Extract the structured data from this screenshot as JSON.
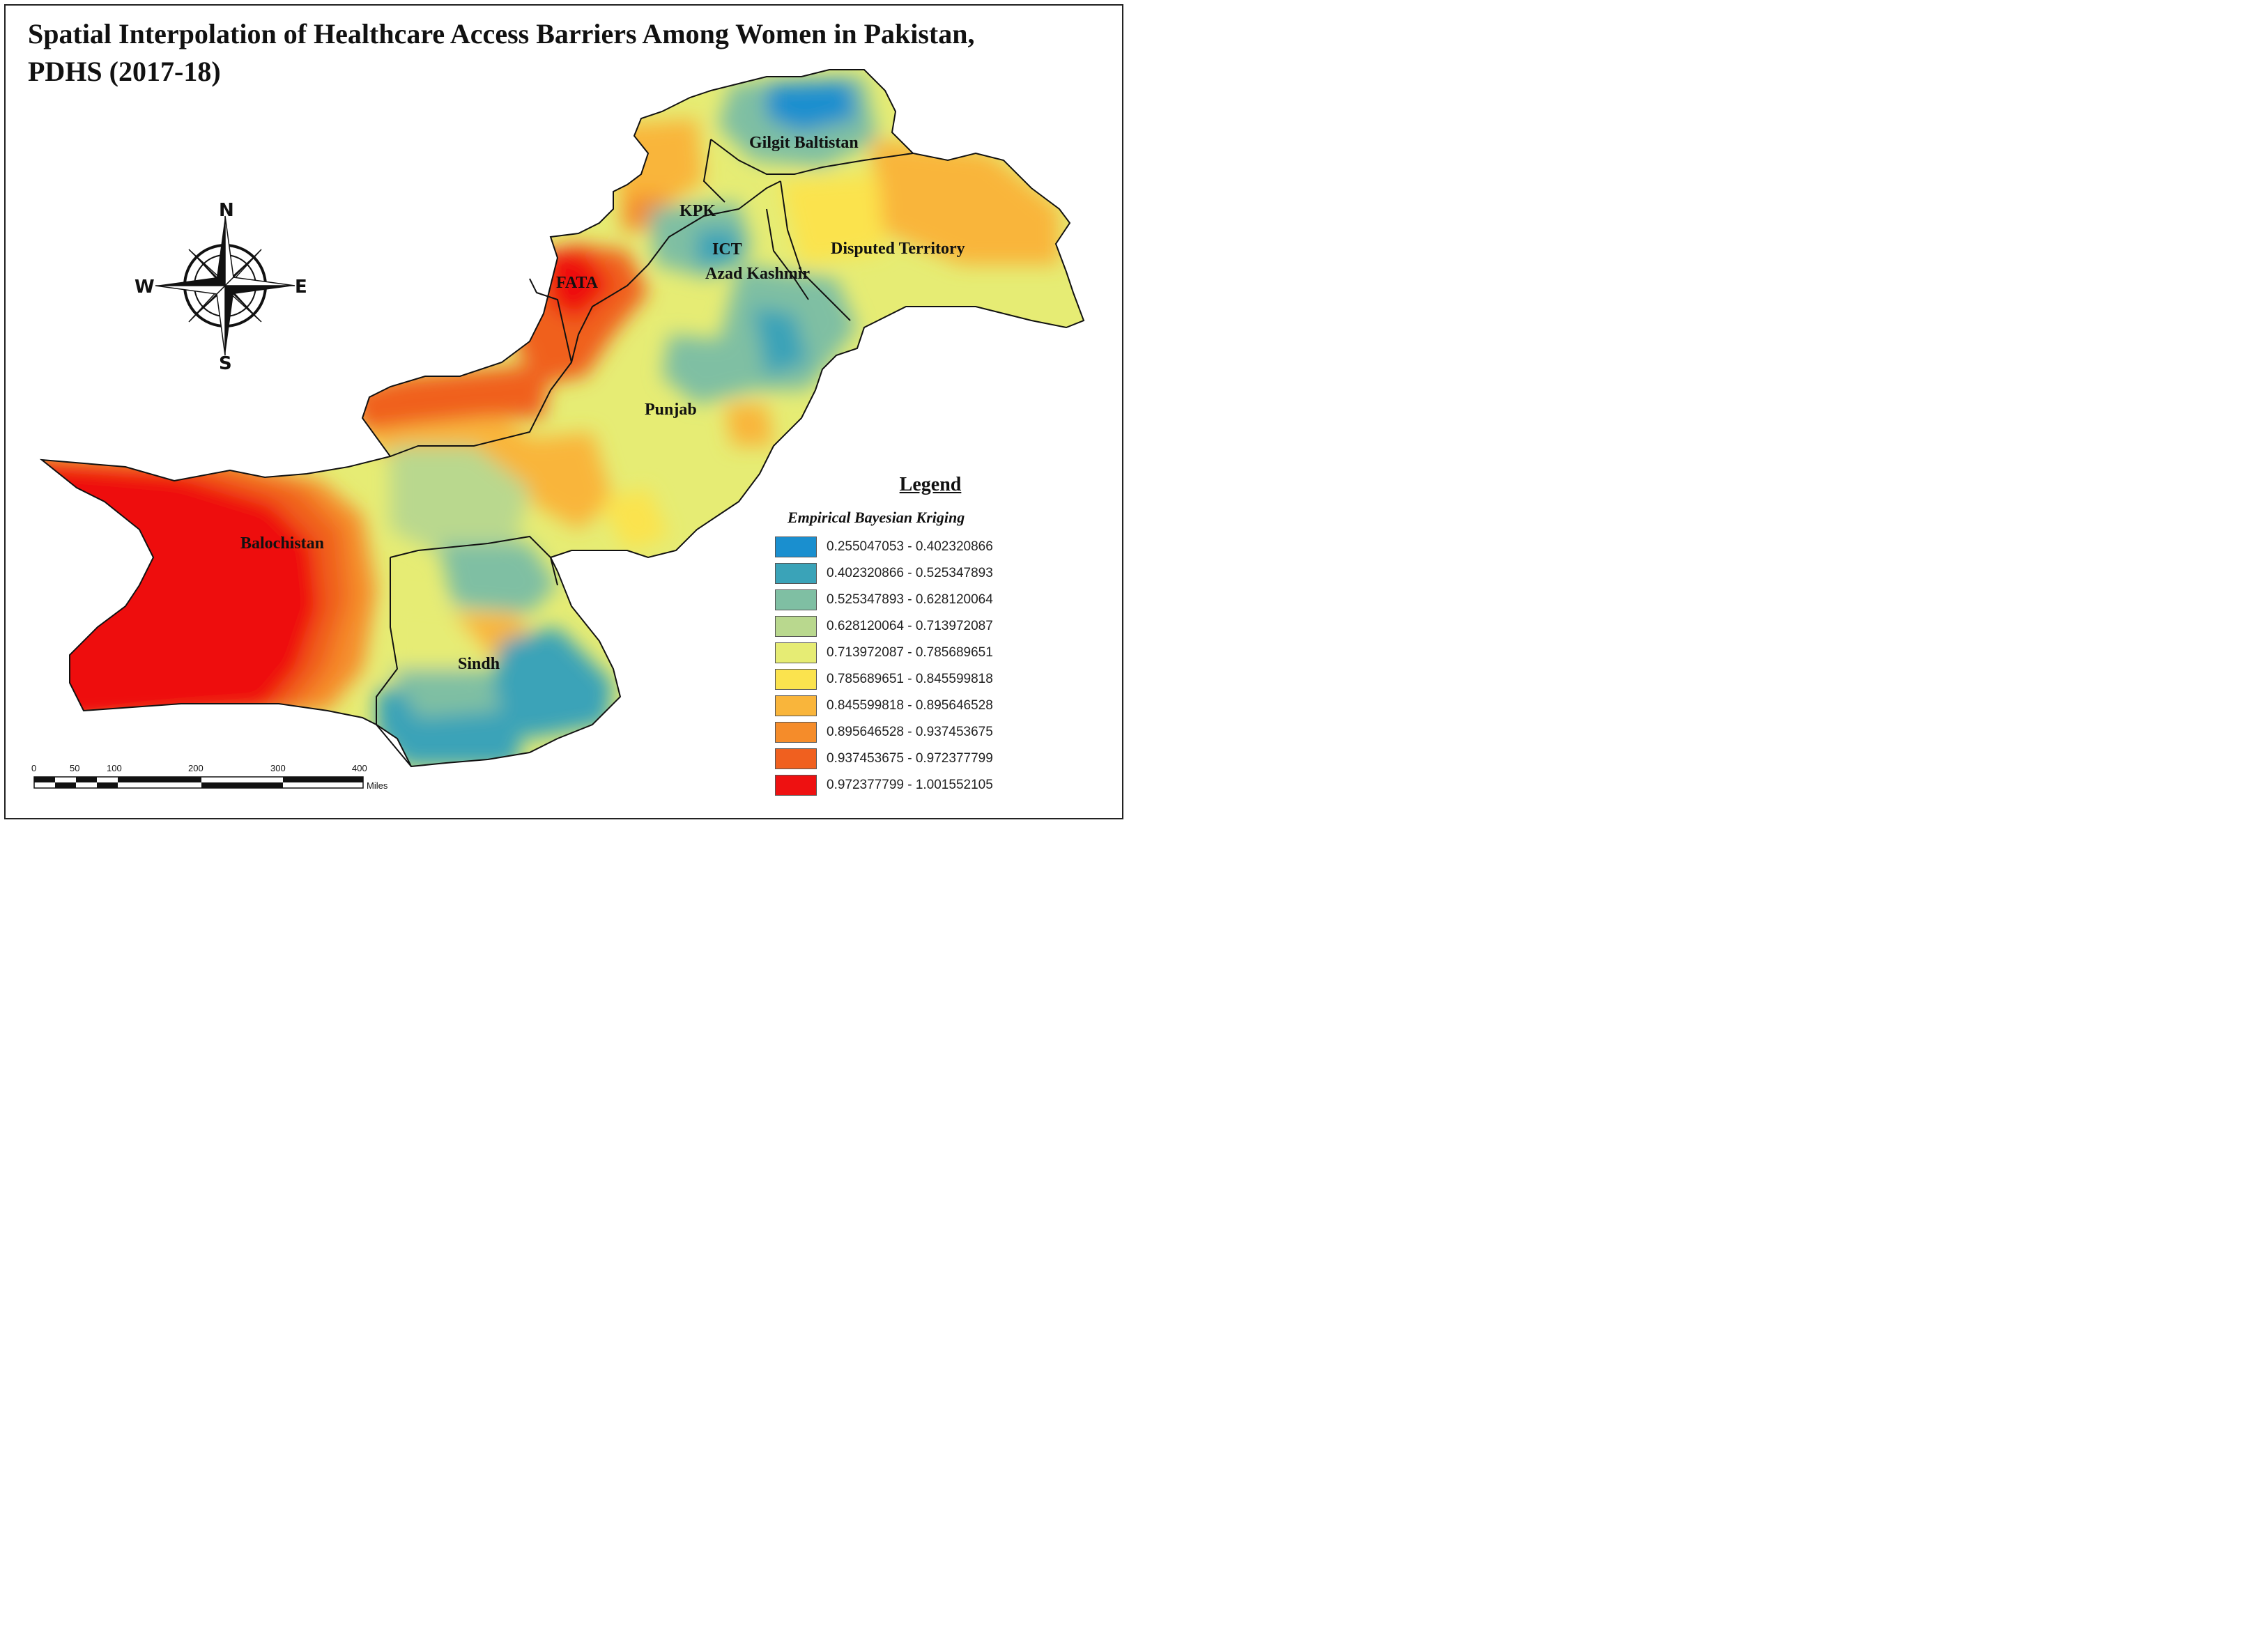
{
  "title": "Spatial Interpolation of Healthcare Access Barriers Among Women in Pakistan, PDHS (2017-18)",
  "regions": [
    {
      "id": "gilgit",
      "label": "Gilgit Baltistan"
    },
    {
      "id": "kpk",
      "label": "KPK"
    },
    {
      "id": "ict",
      "label": "ICT"
    },
    {
      "id": "disputed",
      "label": "Disputed Territory"
    },
    {
      "id": "azad",
      "label": "Azad Kashmir"
    },
    {
      "id": "fata",
      "label": "FATA"
    },
    {
      "id": "punjab",
      "label": "Punjab"
    },
    {
      "id": "balochistan",
      "label": "Balochistan"
    },
    {
      "id": "sindh",
      "label": "Sindh"
    }
  ],
  "compass": {
    "n": "N",
    "s": "S",
    "e": "E",
    "w": "W"
  },
  "scale_bar": {
    "ticks": [
      "0",
      "50",
      "100",
      "200",
      "300",
      "400"
    ],
    "unit": "Miles"
  },
  "legend": {
    "title": "Legend",
    "subtitle": "Empirical Bayesian Kriging",
    "classes": [
      {
        "label": "0.255047053 - 0.402320866",
        "color": "#1a8fcf"
      },
      {
        "label": "0.402320866 - 0.525347893",
        "color": "#3aa3b8"
      },
      {
        "label": "0.525347893 - 0.628120064",
        "color": "#7fbfa3"
      },
      {
        "label": "0.628120064 - 0.713972087",
        "color": "#b9d88e"
      },
      {
        "label": "0.713972087 - 0.785689651",
        "color": "#e6ec74"
      },
      {
        "label": "0.785689651 - 0.845599818",
        "color": "#fbe34e"
      },
      {
        "label": "0.845599818 - 0.895646528",
        "color": "#f9b53b"
      },
      {
        "label": "0.895646528 - 0.937453675",
        "color": "#f58c2a"
      },
      {
        "label": "0.937453675 - 0.972377799",
        "color": "#f0601f"
      },
      {
        "label": "0.972377799 - 1.001552105",
        "color": "#ee1111"
      }
    ]
  }
}
